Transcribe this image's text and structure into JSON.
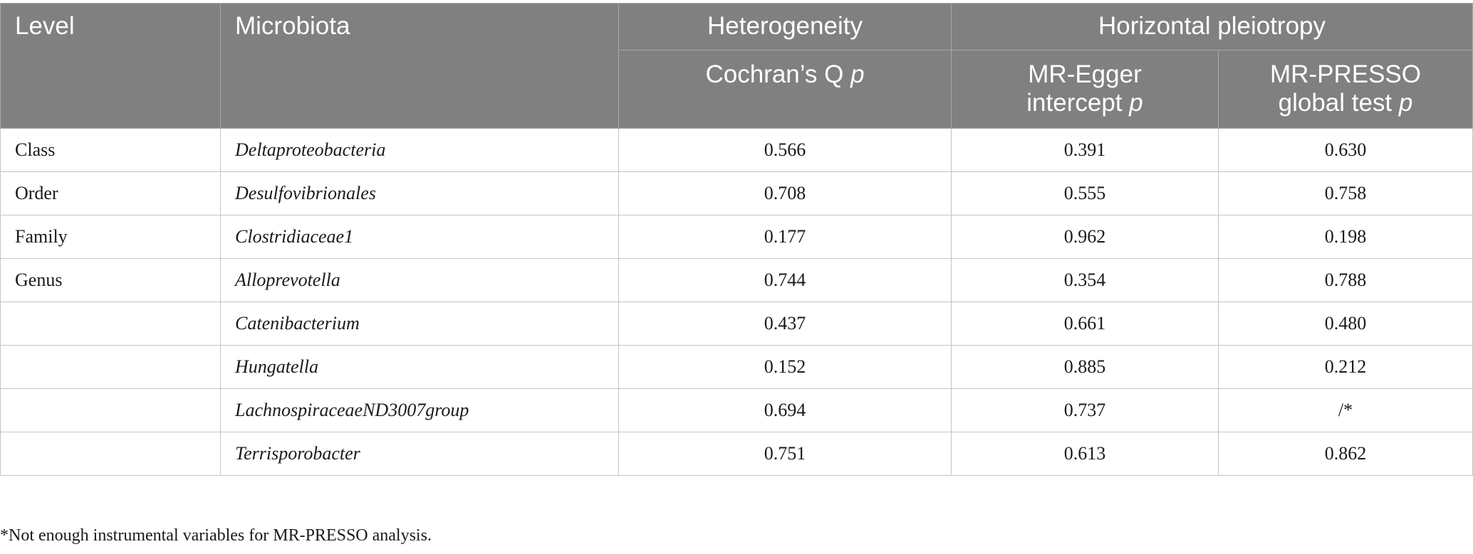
{
  "header": {
    "level": "Level",
    "microbiota": "Microbiota",
    "heterogeneity": "Heterogeneity",
    "horizontal_pleiotropy": "Horizontal pleiotropy",
    "cochran_label": "Cochran’s Q",
    "egger_line1": "MR-Egger",
    "egger_line2": "intercept",
    "presso_line1": "MR-PRESSO",
    "presso_line2": "global test",
    "p": "p"
  },
  "rows": [
    {
      "level": "Class",
      "microbiota": "Deltaproteobacteria",
      "cochran_p": "0.566",
      "egger_p": "0.391",
      "presso_p": "0.630"
    },
    {
      "level": "Order",
      "microbiota": "Desulfovibrionales",
      "cochran_p": "0.708",
      "egger_p": "0.555",
      "presso_p": "0.758"
    },
    {
      "level": "Family",
      "microbiota": "Clostridiaceae1",
      "cochran_p": "0.177",
      "egger_p": "0.962",
      "presso_p": "0.198"
    },
    {
      "level": "Genus",
      "microbiota": "Alloprevotella",
      "cochran_p": "0.744",
      "egger_p": "0.354",
      "presso_p": "0.788"
    },
    {
      "level": "",
      "microbiota": "Catenibacterium",
      "cochran_p": "0.437",
      "egger_p": "0.661",
      "presso_p": "0.480"
    },
    {
      "level": "",
      "microbiota": "Hungatella",
      "cochran_p": "0.152",
      "egger_p": "0.885",
      "presso_p": "0.212"
    },
    {
      "level": "",
      "microbiota": "LachnospiraceaeND3007group",
      "cochran_p": "0.694",
      "egger_p": "0.737",
      "presso_p": "/*"
    },
    {
      "level": "",
      "microbiota": "Terrisporobacter",
      "cochran_p": "0.751",
      "egger_p": "0.613",
      "presso_p": "0.862"
    }
  ],
  "footnote": "*Not enough instrumental variables for MR-PRESSO analysis."
}
